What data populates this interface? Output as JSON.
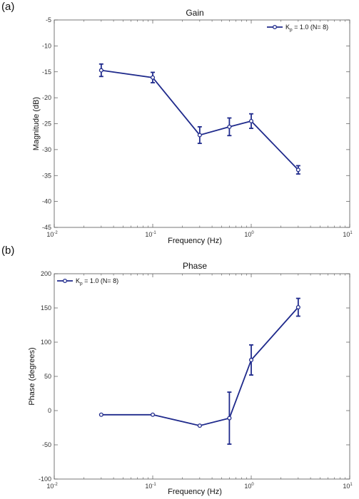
{
  "chart_data": [
    {
      "panel_label": "(a)",
      "type": "line",
      "title": "Gain",
      "xlabel": "Frequency (Hz)",
      "ylabel": "Magnitude (dB)",
      "xscale": "log",
      "xlim": [
        0.01,
        10
      ],
      "ylim": [
        -45,
        -5
      ],
      "x_ticks": [
        {
          "base": "10",
          "exp": "-2"
        },
        {
          "base": "10",
          "exp": "-1"
        },
        {
          "base": "10",
          "exp": "0"
        },
        {
          "base": "10",
          "exp": "1"
        }
      ],
      "y_ticks": [
        "-5",
        "-10",
        "-15",
        "-20",
        "-25",
        "-30",
        "-35",
        "-40",
        "-45"
      ],
      "legend": {
        "location": "top-right",
        "symbol": "K",
        "subscript": "p",
        "rest": " = 1.0 (N= 8)"
      },
      "color": "#1f2a8c",
      "grid": false,
      "series": [
        {
          "x": [
            0.03,
            0.1,
            0.3,
            0.6,
            1.0,
            3.0
          ],
          "y": [
            -14.7,
            -16.1,
            -27.2,
            -25.6,
            -24.5,
            -33.9
          ],
          "err": [
            1.2,
            1.0,
            1.6,
            1.7,
            1.4,
            0.8
          ]
        }
      ]
    },
    {
      "panel_label": "(b)",
      "type": "line",
      "title": "Phase",
      "xlabel": "Frequency (Hz)",
      "ylabel": "Phase (degrees)",
      "xscale": "log",
      "xlim": [
        0.01,
        10
      ],
      "ylim": [
        -100,
        200
      ],
      "x_ticks": [
        {
          "base": "10",
          "exp": "-2"
        },
        {
          "base": "10",
          "exp": "-1"
        },
        {
          "base": "10",
          "exp": "0"
        },
        {
          "base": "10",
          "exp": "1"
        }
      ],
      "y_ticks": [
        "200",
        "150",
        "100",
        "50",
        "0",
        "-50",
        "-100"
      ],
      "legend": {
        "location": "top-left",
        "symbol": "K",
        "subscript": "p",
        "rest": " = 1.0 (N= 8)"
      },
      "color": "#1f2a8c",
      "grid": false,
      "series": [
        {
          "x": [
            0.03,
            0.1,
            0.3,
            0.6,
            1.0,
            3.0
          ],
          "y": [
            -6,
            -6,
            -22,
            -11,
            74,
            151
          ],
          "err": [
            0,
            0,
            0,
            38,
            22,
            13
          ]
        }
      ]
    }
  ]
}
